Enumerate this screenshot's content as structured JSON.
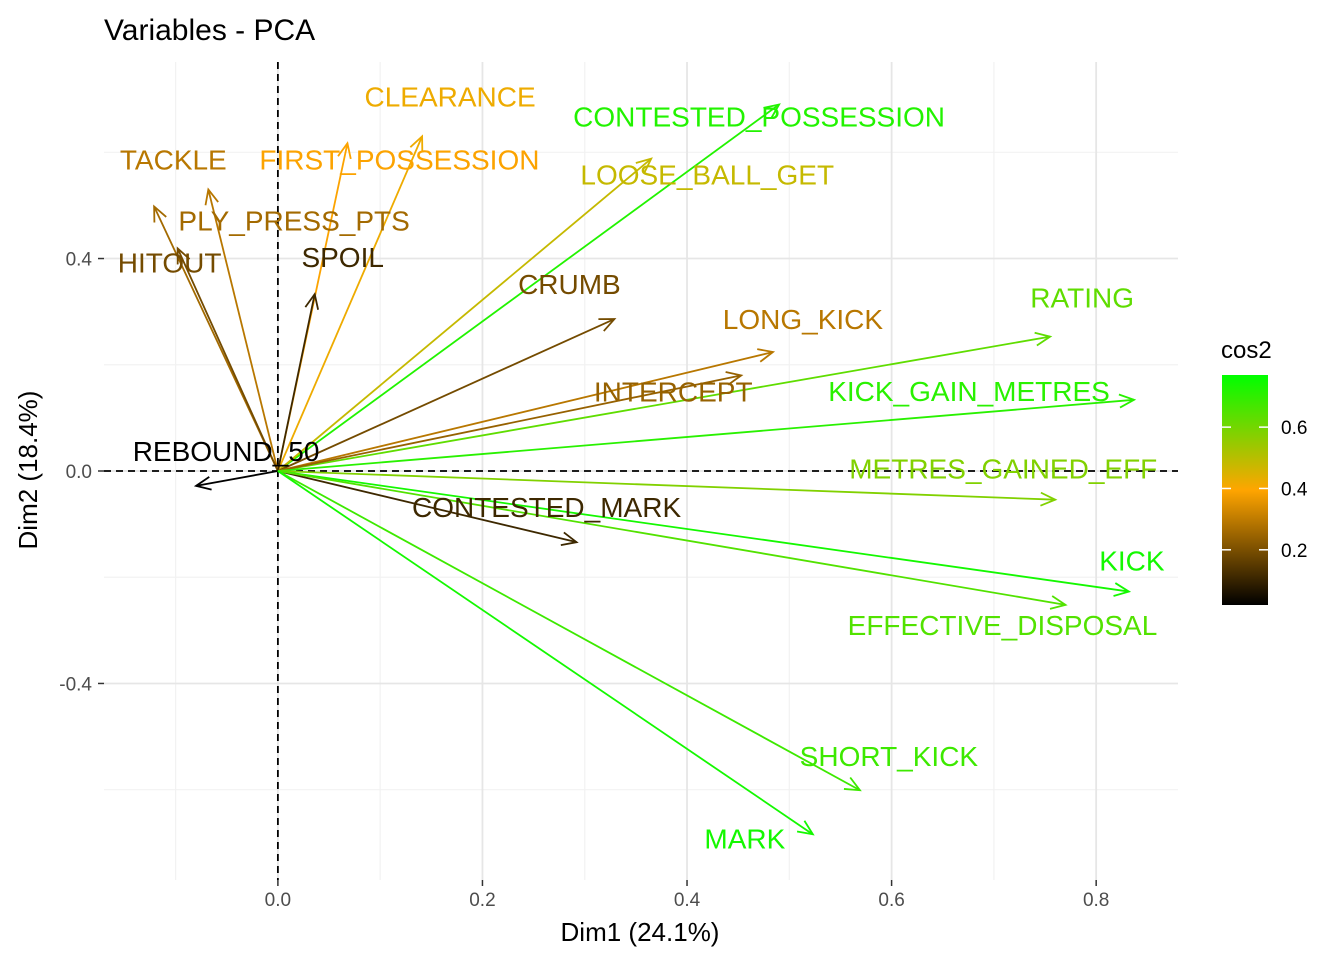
{
  "chart_data": {
    "type": "scatter",
    "title": "Variables - PCA",
    "xlabel": "Dim1 (24.1%)",
    "ylabel": "Dim2 (18.4%)",
    "xlim": [
      -0.17,
      0.88
    ],
    "ylim": [
      -0.77,
      0.77
    ],
    "xticks": [
      0.0,
      0.2,
      0.4,
      0.6,
      0.8
    ],
    "xtick_labels": [
      "0.0",
      "0.2",
      "0.4",
      "0.6",
      "0.8"
    ],
    "yticks": [
      -0.4,
      0.0,
      0.4
    ],
    "ytick_labels": [
      "-0.4",
      "0.0",
      "0.4"
    ],
    "grid": true,
    "reference_lines": {
      "x": 0,
      "y": 0,
      "style": "dashed"
    },
    "legend": {
      "title": "cos2",
      "placement": "right",
      "range": [
        0.02,
        0.77
      ],
      "ticks": [
        0.2,
        0.4,
        0.6
      ],
      "tick_labels": [
        "0.2",
        "0.4",
        "0.6"
      ],
      "gradient": [
        {
          "value": 0.0,
          "color": "#000000"
        },
        {
          "value": 0.5,
          "color": "#FFA500"
        },
        {
          "value": 1.0,
          "color": "#00FF00"
        }
      ]
    },
    "variables": [
      {
        "label": "CLEARANCE",
        "x": 0.141,
        "y": 0.63,
        "cos2": 0.42
      },
      {
        "label": "CONTESTED_POSSESSION",
        "x": 0.49,
        "y": 0.69,
        "cos2": 0.72
      },
      {
        "label": "TACKLE",
        "x": -0.068,
        "y": 0.53,
        "cos2": 0.29
      },
      {
        "label": "FIRST_POSSESSION",
        "x": 0.068,
        "y": 0.617,
        "cos2": 0.39
      },
      {
        "label": "LOOSE_BALL_GET",
        "x": 0.365,
        "y": 0.588,
        "cos2": 0.48
      },
      {
        "label": "PLY_PRESS_PTS",
        "x": -0.121,
        "y": 0.498,
        "cos2": 0.26
      },
      {
        "label": "HITOUT",
        "x": -0.098,
        "y": 0.419,
        "cos2": 0.19
      },
      {
        "label": "SPOIL",
        "x": 0.036,
        "y": 0.333,
        "cos2": 0.11
      },
      {
        "label": "CRUMB",
        "x": 0.329,
        "y": 0.286,
        "cos2": 0.19
      },
      {
        "label": "LONG_KICK",
        "x": 0.484,
        "y": 0.224,
        "cos2": 0.29
      },
      {
        "label": "RATING",
        "x": 0.755,
        "y": 0.253,
        "cos2": 0.63
      },
      {
        "label": "INTERCEPT",
        "x": 0.453,
        "y": 0.18,
        "cos2": 0.24
      },
      {
        "label": "KICK_GAIN_METRES",
        "x": 0.837,
        "y": 0.134,
        "cos2": 0.71
      },
      {
        "label": "REBOUND_50",
        "x": -0.08,
        "y": -0.028,
        "cos2": 0.01
      },
      {
        "label": "METRES_GAINED_EFF",
        "x": 0.76,
        "y": -0.054,
        "cos2": 0.58
      },
      {
        "label": "CONTESTED_MARK",
        "x": 0.292,
        "y": -0.134,
        "cos2": 0.11
      },
      {
        "label": "KICK",
        "x": 0.832,
        "y": -0.227,
        "cos2": 0.74
      },
      {
        "label": "EFFECTIVE_DISPOSAL",
        "x": 0.77,
        "y": -0.252,
        "cos2": 0.65
      },
      {
        "label": "SHORT_KICK",
        "x": 0.569,
        "y": -0.601,
        "cos2": 0.68
      },
      {
        "label": "MARK",
        "x": 0.523,
        "y": -0.684,
        "cos2": 0.74
      }
    ]
  }
}
